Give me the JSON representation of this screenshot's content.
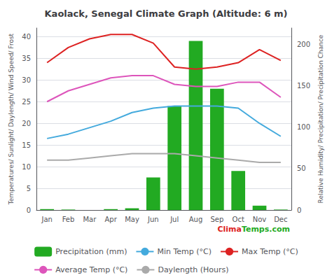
{
  "chart_data": {
    "type": "bar",
    "title": "Kaolack, Senegal Climate Graph (Altitude: 6 m)",
    "categories": [
      "Jan",
      "Feb",
      "Mar",
      "Apr",
      "May",
      "Jun",
      "Jul",
      "Aug",
      "Sep",
      "Oct",
      "Nov",
      "Dec"
    ],
    "series": [
      {
        "name": "Precipitation (mm)",
        "type": "bar",
        "color": "#22aa22",
        "values": [
          0.2,
          0.1,
          0.0,
          0.2,
          0.4,
          7.5,
          24.0,
          39.0,
          28.0,
          9.0,
          1.0,
          0.1
        ]
      },
      {
        "name": "Min Temp (°C)",
        "type": "line",
        "color": "#44aadd",
        "values": [
          16.5,
          17.5,
          19.0,
          20.5,
          22.5,
          23.5,
          24.0,
          24.0,
          24.0,
          23.5,
          20.0,
          17.0
        ]
      },
      {
        "name": "Max Temp (°C)",
        "type": "line",
        "color": "#dd2222",
        "values": [
          34.0,
          37.5,
          39.5,
          40.5,
          40.5,
          38.5,
          33.0,
          32.5,
          33.0,
          34.0,
          37.0,
          34.5
        ]
      },
      {
        "name": "Average Temp (°C)",
        "type": "line",
        "color": "#dd55bb",
        "values": [
          25.0,
          27.5,
          29.0,
          30.5,
          31.0,
          31.0,
          29.0,
          28.5,
          28.5,
          29.5,
          29.5,
          26.0
        ]
      },
      {
        "name": "Daylength (Hours)",
        "type": "line",
        "color": "#aaaaaa",
        "values": [
          11.5,
          11.5,
          12.0,
          12.5,
          13.0,
          13.0,
          13.0,
          12.5,
          12.0,
          11.5,
          11.0,
          11.0
        ]
      }
    ],
    "ylabel": "Temperatures/ Sunlight/ Daylength/ Wind Speed/ Frost",
    "y2label": "Relative Humidity/ Precipitation/ Precipitation Chance",
    "ylim": [
      0,
      42
    ],
    "yticks": [
      0,
      5,
      10,
      15,
      20,
      25,
      30,
      35,
      40
    ],
    "y2lim": [
      0,
      220
    ],
    "y2ticks": [
      0,
      50,
      100,
      150,
      200
    ],
    "grid": true,
    "legend": "bottom",
    "annotations": [
      {
        "text": "Clima",
        "color": "#dd2222"
      },
      {
        "text": "Temps.com",
        "color": "#22aa22"
      }
    ]
  }
}
